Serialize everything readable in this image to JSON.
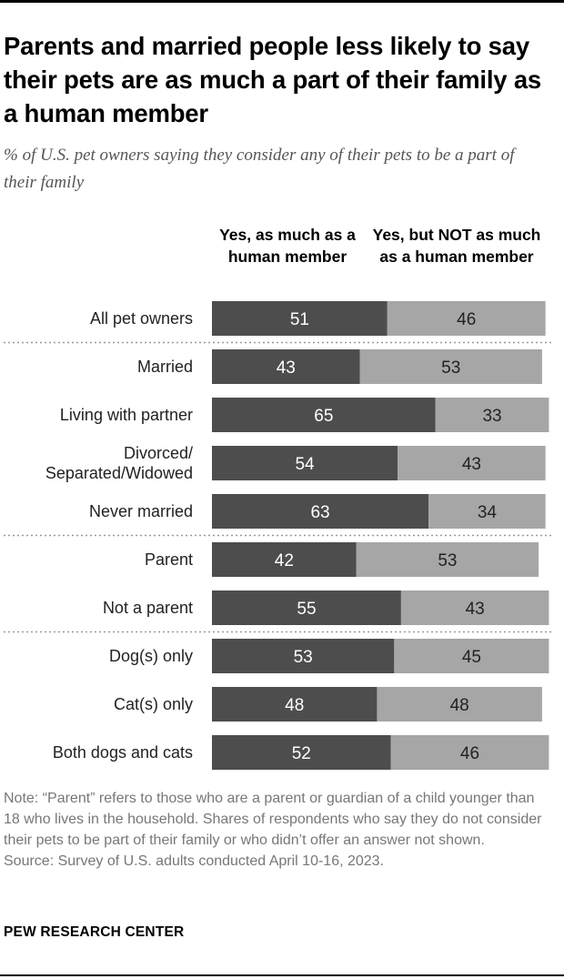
{
  "title": "Parents and married people less likely to say their pets are as much a part of their family as a human member",
  "subtitle": "% of U.S. pet owners saying they consider any of their pets to be a part of their family",
  "chart_data": {
    "type": "bar",
    "orientation": "horizontal",
    "stacked": true,
    "categories": [
      "All pet owners",
      "Married",
      "Living with partner",
      "Divorced/\nSeparated/Widowed",
      "Never married",
      "Parent",
      "Not a parent",
      "Dog(s) only",
      "Cat(s) only",
      "Both dogs and cats"
    ],
    "groups": [
      [
        0
      ],
      [
        1,
        2,
        3,
        4
      ],
      [
        5,
        6
      ],
      [
        7,
        8,
        9
      ]
    ],
    "series": [
      {
        "name": "Yes, as much as a human member",
        "values": [
          51,
          43,
          65,
          54,
          63,
          42,
          55,
          53,
          48,
          52
        ],
        "color": "#4d4d4d",
        "label_color": "#ffffff"
      },
      {
        "name": "Yes, but NOT as much as a human member",
        "values": [
          46,
          53,
          33,
          43,
          34,
          53,
          43,
          45,
          48,
          46
        ],
        "color": "#a6a6a6",
        "label_color": "#222222"
      }
    ],
    "xlim": [
      0,
      100
    ]
  },
  "column_headers": [
    "Yes, as much as a human member",
    "Yes, but NOT as much as a human member"
  ],
  "note": "Note: “Parent” refers to those who are a parent or guardian of a child younger than 18 who lives in the household. Shares of respondents who say they do not consider their pets to be part of their family or who didn’t offer an answer not shown.",
  "source": "Source: Survey of U.S. adults conducted April 10-16, 2023.",
  "footer": "PEW RESEARCH CENTER"
}
